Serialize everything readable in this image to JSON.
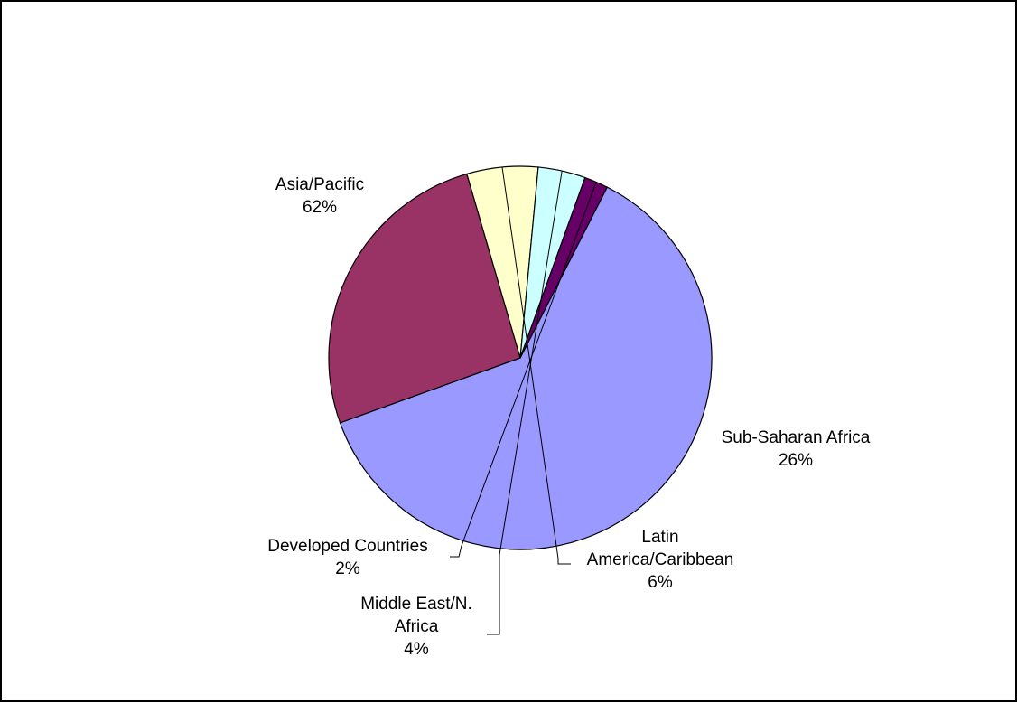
{
  "chart_data": {
    "type": "pie",
    "slices": [
      {
        "label": [
          "Asia/Pacific"
        ],
        "pct_label": "62%",
        "value": 62,
        "color": "#9999ff"
      },
      {
        "label": [
          "Sub-Saharan Africa"
        ],
        "pct_label": "26%",
        "value": 26,
        "color": "#993366"
      },
      {
        "label": [
          "Latin",
          "America/Caribbean"
        ],
        "pct_label": "6%",
        "value": 6,
        "color": "#ffffcc"
      },
      {
        "label": [
          "Middle East/N.",
          "Africa"
        ],
        "pct_label": "4%",
        "value": 4,
        "color": "#ccffff"
      },
      {
        "label": [
          "Developed Countries"
        ],
        "pct_label": "2%",
        "value": 2,
        "color": "#660066"
      }
    ]
  }
}
